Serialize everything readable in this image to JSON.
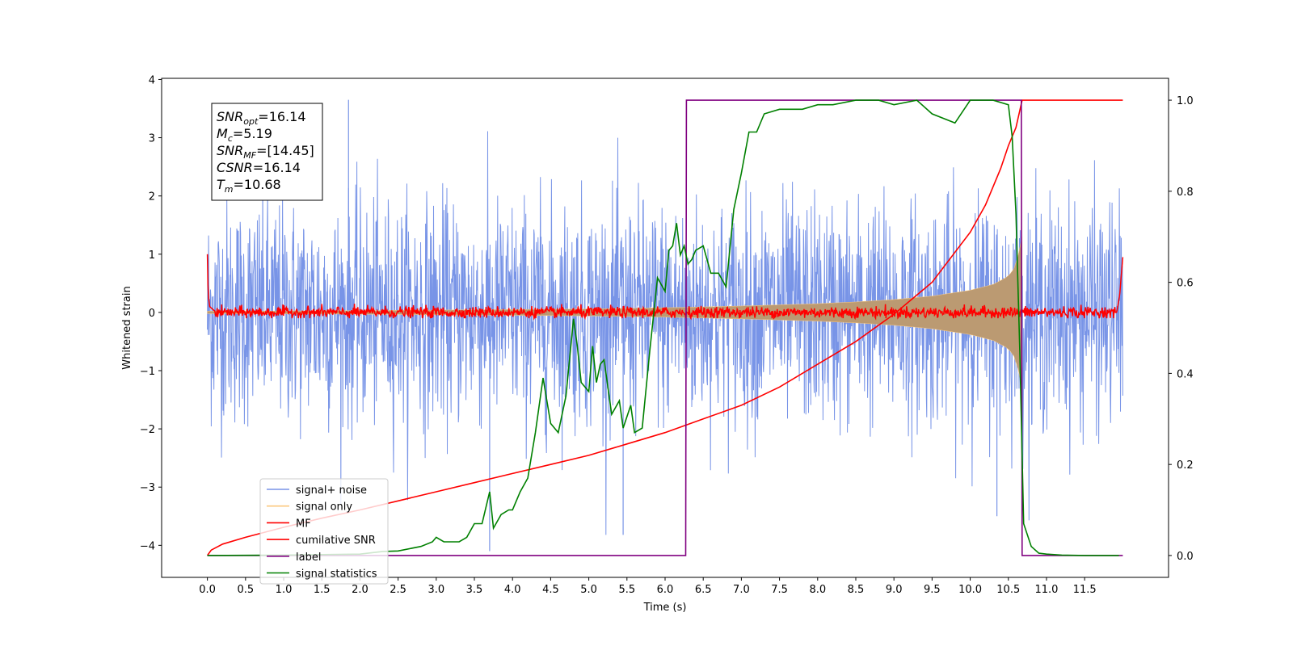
{
  "chart_data": {
    "type": "line",
    "xlabel": "Time (s)",
    "ylabel": "Whitened strain",
    "xlim": [
      -0.6,
      12.6
    ],
    "ylim": [
      -4.55,
      4.02
    ],
    "y2lim": [
      -0.048,
      1.048
    ],
    "x_ticks": [
      0.0,
      0.5,
      1.0,
      1.5,
      2.0,
      2.5,
      3.0,
      3.5,
      4.0,
      4.5,
      5.0,
      5.5,
      6.0,
      6.5,
      7.0,
      7.5,
      8.0,
      8.5,
      9.0,
      9.5,
      10.0,
      10.5,
      11.0,
      11.5
    ],
    "x_tick_labels": [
      "0.0",
      "0.5",
      "1.0",
      "1.5",
      "2.0",
      "2.5",
      "3.0",
      "3.5",
      "4.0",
      "4.5",
      "5.0",
      "5.5",
      "6.0",
      "6.5",
      "7.0",
      "7.5",
      "8.0",
      "8.5",
      "9.0",
      "9.5",
      "10.0",
      "10.5",
      "11.0",
      "11.5"
    ],
    "y_ticks": [
      -4,
      -3,
      -2,
      -1,
      0,
      1,
      2,
      3,
      4
    ],
    "y_tick_labels": [
      "−4",
      "−3",
      "−2",
      "−1",
      "0",
      "1",
      "2",
      "3",
      "4"
    ],
    "y2_ticks": [
      0.0,
      0.2,
      0.4,
      0.6,
      0.8,
      1.0
    ],
    "y2_tick_labels": [
      "0.0",
      "0.2",
      "0.4",
      "0.6",
      "0.8",
      "1.0"
    ],
    "grid": false,
    "legend_position": "lower-left",
    "colors": {
      "signal_noise": "#7894e7",
      "signal_only": "#fcc97f",
      "signal_fill": "#bb9a72",
      "mf": "#ff0000",
      "cumulative_snr": "#ff0000",
      "label": "#800080",
      "signal_statistics": "#008000"
    },
    "series": [
      {
        "name": "signal+ noise",
        "axis": "left",
        "description_range": {
          "x": [
            0.0,
            12.0
          ],
          "y_min": -4.1,
          "y_max": 3.65
        },
        "notable_extremes": [
          {
            "x": 1.85,
            "y": 3.65
          },
          {
            "x": 3.7,
            "y": -4.1
          },
          {
            "x": 5.45,
            "y": -3.82
          },
          {
            "x": 10.35,
            "y": -3.5
          }
        ]
      },
      {
        "name": "signal only",
        "axis": "left",
        "envelope": {
          "x": [
            0.0,
            2.0,
            4.0,
            5.0,
            6.0,
            7.0,
            8.0,
            8.5,
            9.0,
            9.5,
            10.0,
            10.3,
            10.5,
            10.6,
            10.68
          ],
          "amplitude": [
            0.02,
            0.03,
            0.05,
            0.06,
            0.08,
            0.11,
            0.15,
            0.18,
            0.22,
            0.28,
            0.38,
            0.48,
            0.62,
            0.8,
            1.3
          ]
        }
      },
      {
        "name": "MF",
        "axis": "left",
        "x": [
          0.0,
          0.01,
          0.03,
          0.1,
          0.5,
          1.0,
          11.92,
          11.96,
          12.0
        ],
        "y": [
          1.0,
          0.3,
          0.1,
          0.02,
          -0.02,
          0.0,
          0.0,
          0.3,
          0.95
        ],
        "noise_band": [
          -0.1,
          0.12
        ]
      },
      {
        "name": "cumilative SNR",
        "axis": "right",
        "x": [
          0.0,
          0.05,
          0.2,
          0.5,
          1.0,
          1.5,
          2.0,
          2.5,
          3.0,
          3.5,
          4.0,
          4.5,
          5.0,
          5.5,
          6.0,
          6.5,
          7.0,
          7.5,
          8.0,
          8.5,
          9.0,
          9.5,
          10.0,
          10.2,
          10.4,
          10.5,
          10.6,
          10.68,
          12.0
        ],
        "values": [
          0.0,
          0.012,
          0.025,
          0.04,
          0.062,
          0.082,
          0.1,
          0.12,
          0.14,
          0.16,
          0.18,
          0.2,
          0.22,
          0.245,
          0.27,
          0.3,
          0.33,
          0.37,
          0.42,
          0.47,
          0.53,
          0.6,
          0.71,
          0.77,
          0.85,
          0.9,
          0.94,
          1.0,
          1.0
        ]
      },
      {
        "name": "label",
        "axis": "right",
        "x": [
          0.0,
          6.27,
          6.28,
          10.67,
          10.68,
          12.0
        ],
        "values": [
          0.0,
          0.0,
          1.0,
          1.0,
          0.0,
          0.0
        ]
      },
      {
        "name": "signal statistics",
        "axis": "right",
        "x": [
          0.0,
          1.0,
          2.0,
          2.3,
          2.5,
          2.8,
          2.95,
          3.0,
          3.1,
          3.2,
          3.3,
          3.4,
          3.5,
          3.6,
          3.7,
          3.75,
          3.85,
          3.95,
          4.0,
          4.1,
          4.2,
          4.3,
          4.4,
          4.5,
          4.6,
          4.7,
          4.8,
          4.85,
          4.9,
          5.0,
          5.05,
          5.1,
          5.15,
          5.2,
          5.3,
          5.4,
          5.45,
          5.55,
          5.6,
          5.7,
          5.8,
          5.9,
          6.0,
          6.05,
          6.1,
          6.15,
          6.2,
          6.25,
          6.3,
          6.35,
          6.4,
          6.5,
          6.6,
          6.7,
          6.8,
          6.9,
          7.0,
          7.1,
          7.2,
          7.3,
          7.5,
          7.8,
          8.0,
          8.2,
          8.5,
          8.8,
          9.0,
          9.3,
          9.5,
          9.8,
          10.0,
          10.3,
          10.5,
          10.55,
          10.6,
          10.65,
          10.7,
          10.8,
          10.9,
          11.0,
          11.2,
          11.5,
          11.95
        ],
        "values": [
          0.0,
          0.001,
          0.003,
          0.009,
          0.01,
          0.02,
          0.03,
          0.04,
          0.03,
          0.03,
          0.03,
          0.04,
          0.07,
          0.07,
          0.14,
          0.06,
          0.09,
          0.1,
          0.1,
          0.14,
          0.17,
          0.27,
          0.39,
          0.29,
          0.27,
          0.35,
          0.52,
          0.46,
          0.38,
          0.36,
          0.46,
          0.38,
          0.42,
          0.43,
          0.31,
          0.34,
          0.28,
          0.33,
          0.27,
          0.28,
          0.45,
          0.61,
          0.58,
          0.67,
          0.68,
          0.73,
          0.66,
          0.68,
          0.64,
          0.65,
          0.67,
          0.68,
          0.62,
          0.62,
          0.59,
          0.76,
          0.84,
          0.93,
          0.93,
          0.97,
          0.98,
          0.98,
          0.99,
          0.99,
          1.0,
          1.0,
          0.99,
          1.0,
          0.97,
          0.95,
          1.0,
          1.0,
          0.99,
          0.92,
          0.75,
          0.45,
          0.07,
          0.02,
          0.005,
          0.003,
          0.001,
          0.0,
          0.0
        ]
      }
    ],
    "legend": [
      {
        "label": "signal+ noise",
        "color": "#7894e7"
      },
      {
        "label": "signal only",
        "color": "#fcc97f"
      },
      {
        "label": "MF",
        "color": "#ff0000"
      },
      {
        "label": "cumilative SNR",
        "color": "#ff0000"
      },
      {
        "label": "label",
        "color": "#800080"
      },
      {
        "label": "signal statistics",
        "color": "#008000"
      }
    ],
    "annotation": [
      {
        "base": "SNR",
        "sub": "opt",
        "rest": "=16.14"
      },
      {
        "base": "M",
        "sub": "c",
        "rest": "=5.19"
      },
      {
        "base": "SNR",
        "sub": "MF",
        "rest": "=[14.45]"
      },
      {
        "base": "CSNR",
        "sub": "",
        "rest": "=16.14"
      },
      {
        "base": "T",
        "sub": "m",
        "rest": "=10.68"
      }
    ]
  }
}
